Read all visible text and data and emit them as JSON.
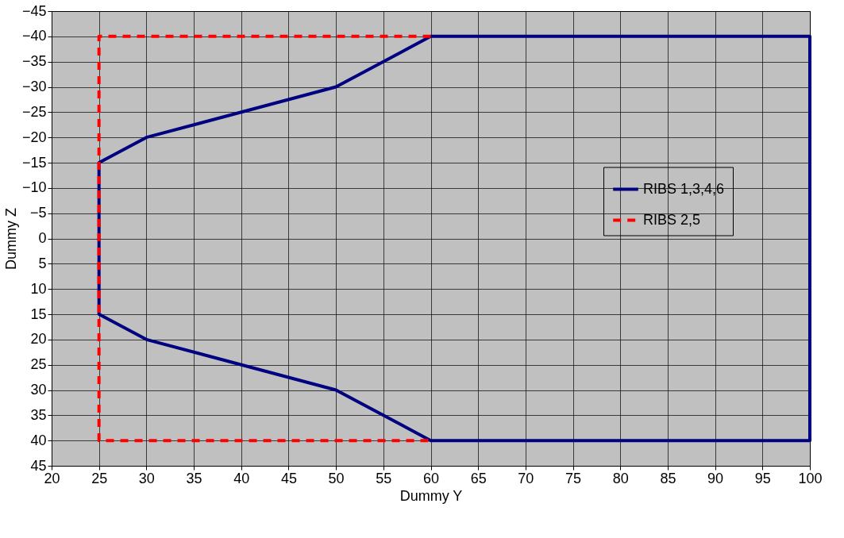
{
  "chart_data": {
    "type": "line",
    "xlabel": "Dummy Y",
    "ylabel": "Dummy Z",
    "xlim": [
      20,
      100
    ],
    "xticks": [
      20,
      25,
      30,
      35,
      40,
      45,
      50,
      55,
      60,
      65,
      70,
      75,
      80,
      85,
      90,
      95,
      100
    ],
    "ylim": [
      45,
      -45
    ],
    "yticks": [
      -45,
      -40,
      -35,
      -30,
      -25,
      -20,
      -15,
      -10,
      -5,
      0,
      5,
      10,
      15,
      20,
      25,
      30,
      35,
      40,
      45
    ],
    "grid": true,
    "legend": "right",
    "marker": "none",
    "series": [
      {
        "name": "RIBS 1,3,4,6",
        "color": "#000080",
        "line_style": "solid",
        "x": [
          100,
          60,
          50,
          30,
          25,
          25,
          30,
          50,
          60,
          100,
          100,
          60
        ],
        "values": [
          -40,
          -40,
          -30,
          -20,
          -15,
          15,
          20,
          30,
          40,
          40,
          -40,
          -40
        ]
      },
      {
        "name": "RIBS 2,5",
        "color": "#ff0000",
        "line_style": "dashed",
        "x": [
          60,
          25,
          25,
          60
        ],
        "values": [
          -40,
          -40,
          40,
          40
        ]
      }
    ]
  }
}
